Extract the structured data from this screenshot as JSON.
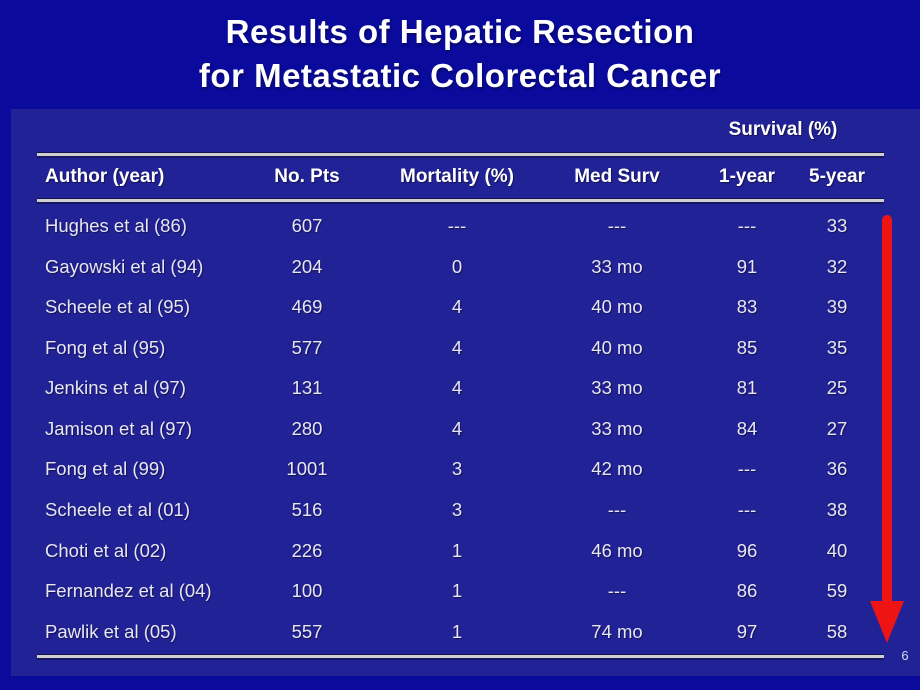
{
  "slide": {
    "title_line1": "Results of Hepatic Resection",
    "title_line2": "for Metastatic Colorectal Cancer",
    "page_number": "6",
    "colors": {
      "background": "#0a0a9c",
      "panel": "#222297",
      "rule": "#cfcfcf",
      "title_text": "#ffffff",
      "data_text": "#e6e6f5",
      "arrow": "#ee1414"
    }
  },
  "table": {
    "group_header": "Survival (%)",
    "columns": [
      "Author (year)",
      "No. Pts",
      "Mortality (%)",
      "Med Surv",
      "1-year",
      "5-year"
    ],
    "rows": [
      [
        "Hughes et al (86)",
        "607",
        "---",
        "---",
        "---",
        "33"
      ],
      [
        "Gayowski et al (94)",
        "204",
        "0",
        "33 mo",
        "91",
        "32"
      ],
      [
        "Scheele et al (95)",
        "469",
        "4",
        "40 mo",
        "83",
        "39"
      ],
      [
        "Fong et al (95)",
        "577",
        "4",
        "40 mo",
        "85",
        "35"
      ],
      [
        "Jenkins et al (97)",
        "131",
        "4",
        "33 mo",
        "81",
        "25"
      ],
      [
        "Jamison et al (97)",
        "280",
        "4",
        "33 mo",
        "84",
        "27"
      ],
      [
        "Fong et al (99)",
        "1001",
        "3",
        "42 mo",
        "---",
        "36"
      ],
      [
        "Scheele et al (01)",
        "516",
        "3",
        "---",
        "---",
        "38"
      ],
      [
        "Choti et al (02)",
        "226",
        "1",
        "46 mo",
        "96",
        "40"
      ],
      [
        "Fernandez et al (04)",
        "100",
        "1",
        "---",
        "86",
        "59"
      ],
      [
        "Pawlik et al (05)",
        "557",
        "1",
        "74 mo",
        "97",
        "58"
      ]
    ]
  },
  "annotations": {
    "trend_arrow": "red-down-arrow"
  }
}
